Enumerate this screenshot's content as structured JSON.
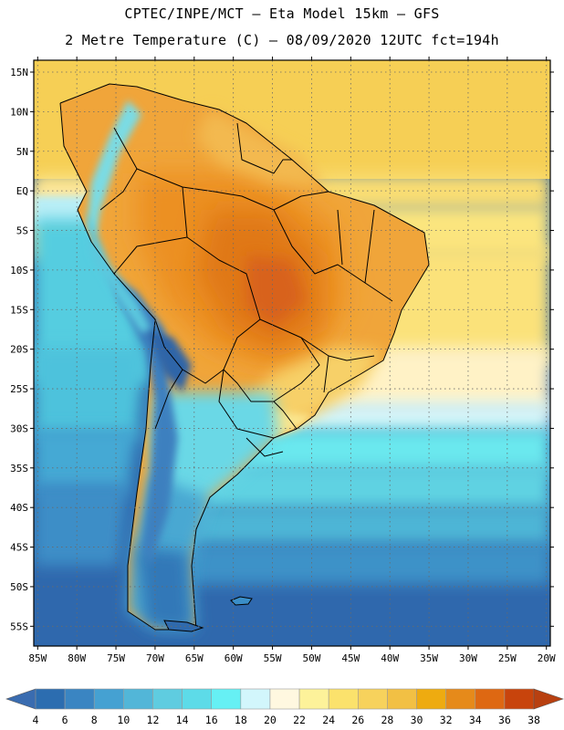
{
  "header": {
    "line1": "CPTEC/INPE/MCT –  Eta Model 15km – GFS",
    "line2": "2 Metre Temperature (C) – 08/09/2020 12UTC fct=194h"
  },
  "map": {
    "lat_labels": [
      "15N",
      "10N",
      "5N",
      "EQ",
      "5S",
      "10S",
      "15S",
      "20S",
      "25S",
      "30S",
      "35S",
      "40S",
      "45S",
      "50S",
      "55S"
    ],
    "lon_labels": [
      "85W",
      "80W",
      "75W",
      "70W",
      "65W",
      "60W",
      "55W",
      "50W",
      "45W",
      "40W",
      "35W",
      "30W",
      "25W",
      "20W"
    ],
    "lat_values": [
      15,
      10,
      5,
      0,
      -5,
      -10,
      -15,
      -20,
      -25,
      -30,
      -35,
      -40,
      -45,
      -50,
      -55
    ],
    "lon_values": [
      -85,
      -80,
      -75,
      -70,
      -65,
      -60,
      -55,
      -50,
      -45,
      -40,
      -35,
      -30,
      -25,
      -20
    ],
    "extent": {
      "lon_min": -85.5,
      "lon_max": -19.5,
      "lat_min": -57.5,
      "lat_max": 16.5
    }
  },
  "colorbar": {
    "values": [
      "4",
      "6",
      "8",
      "10",
      "12",
      "14",
      "16",
      "18",
      "20",
      "22",
      "24",
      "26",
      "28",
      "30",
      "32",
      "34",
      "36",
      "38"
    ],
    "colors": [
      "#2c6db0",
      "#3a85c2",
      "#45a1d2",
      "#52b6d8",
      "#5fcce0",
      "#5ddbe8",
      "#66f0f4",
      "#d2f6fc",
      "#fff8e0",
      "#fdf29a",
      "#fbe26c",
      "#f7d25c",
      "#f2c044",
      "#eeab10",
      "#e68a1a",
      "#de6812",
      "#c8440c"
    ],
    "low_arrow_color": "#3a6cb0",
    "high_arrow_color": "#b84010"
  }
}
